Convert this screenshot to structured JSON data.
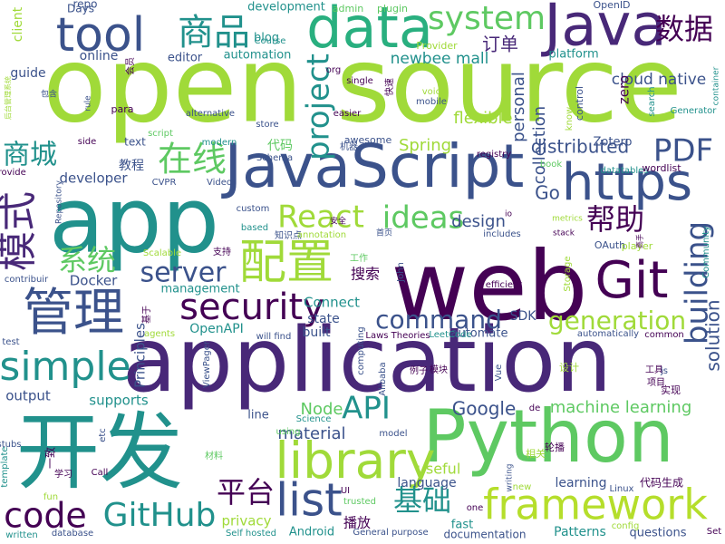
{
  "background": "#ffffff",
  "palette": [
    "#440154",
    "#3b528b",
    "#21918c",
    "#5ec962",
    "#a0da39",
    "#fde725"
  ],
  "words": [
    {
      "text": "open source",
      "color": "#a0da39"
    },
    {
      "text": "web",
      "color": "#440154"
    },
    {
      "text": "application",
      "color": "#482878"
    },
    {
      "text": "Python",
      "color": "#5ec962"
    },
    {
      "text": "开发",
      "color": "#21918c"
    },
    {
      "text": "app",
      "color": "#21918c"
    },
    {
      "text": "JavaScript",
      "color": "#3b528b"
    },
    {
      "text": "data",
      "color": "#29af7f"
    },
    {
      "text": "Java",
      "color": "#482878"
    },
    {
      "text": "tool",
      "color": "#3b528b"
    },
    {
      "text": "library",
      "color": "#a0da39"
    },
    {
      "text": "https",
      "color": "#3b528b"
    },
    {
      "text": "framework",
      "color": "#b5de2b"
    },
    {
      "text": "Git",
      "color": "#440154"
    },
    {
      "text": "配置",
      "color": "#a0da39"
    },
    {
      "text": "system",
      "color": "#5ec962"
    },
    {
      "text": "管理",
      "color": "#3b528b"
    },
    {
      "text": "商品",
      "color": "#21918c"
    },
    {
      "text": "数据",
      "color": "#440154"
    },
    {
      "text": "simple",
      "color": "#21918c"
    },
    {
      "text": "GitHub",
      "color": "#21918c"
    },
    {
      "text": "list",
      "color": "#3b528b"
    },
    {
      "text": "code",
      "color": "#440154"
    },
    {
      "text": "security",
      "color": "#440154"
    },
    {
      "text": "React",
      "color": "#a0da39"
    },
    {
      "text": "ideas",
      "color": "#5ec962"
    },
    {
      "text": "project",
      "color": "#21918c"
    },
    {
      "text": "building",
      "color": "#3b528b"
    },
    {
      "text": "API",
      "color": "#21918c"
    },
    {
      "text": "PDF",
      "color": "#3b528b"
    },
    {
      "text": "在线",
      "color": "#5ec962"
    },
    {
      "text": "server",
      "color": "#3b528b"
    },
    {
      "text": "模式",
      "color": "#482878"
    },
    {
      "text": "商城",
      "color": "#21918c"
    },
    {
      "text": "系统",
      "color": "#5ec962"
    },
    {
      "text": "帮助",
      "color": "#440154"
    },
    {
      "text": "command",
      "color": "#3b528b"
    },
    {
      "text": "generation",
      "color": "#a0da39"
    },
    {
      "text": "平台",
      "color": "#440154"
    },
    {
      "text": "基础",
      "color": "#21918c"
    },
    {
      "text": "Google",
      "color": "#3b528b"
    },
    {
      "text": "solution",
      "color": "#3b528b"
    },
    {
      "text": "material",
      "color": "#3b528b"
    },
    {
      "text": "Node",
      "color": "#5ec962"
    },
    {
      "text": "Go",
      "color": "#3b528b"
    },
    {
      "text": "design",
      "color": "#3b528b"
    },
    {
      "text": "machine learning",
      "color": "#5ec962"
    },
    {
      "text": "distributed",
      "color": "#3b528b"
    },
    {
      "text": "flexible",
      "color": "#a0da39"
    },
    {
      "text": "Spring",
      "color": "#a0da39"
    },
    {
      "text": "collection",
      "color": "#3b528b"
    },
    {
      "text": "personal",
      "color": "#3b528b"
    },
    {
      "text": "cloud native",
      "color": "#3b528b"
    },
    {
      "text": "newbee mall",
      "color": "#21918c"
    },
    {
      "text": "订单",
      "color": "#482878"
    },
    {
      "text": "automation",
      "color": "#21918c"
    },
    {
      "text": "platform",
      "color": "#21918c"
    },
    {
      "text": "online",
      "color": "#3b528b"
    },
    {
      "text": "guide",
      "color": "#3b528b"
    },
    {
      "text": "editor",
      "color": "#3b528b"
    },
    {
      "text": "developer",
      "color": "#3b528b"
    },
    {
      "text": "教程",
      "color": "#3b528b"
    },
    {
      "text": "代码",
      "color": "#5ec962"
    },
    {
      "text": "Docker",
      "color": "#3b528b"
    },
    {
      "text": "management",
      "color": "#21918c"
    },
    {
      "text": "Connect",
      "color": "#21918c"
    },
    {
      "text": "state",
      "color": "#3b528b"
    },
    {
      "text": "built",
      "color": "#3b528b"
    },
    {
      "text": "SDK",
      "color": "#3b528b"
    },
    {
      "text": "OpenAPI",
      "color": "#21918c"
    },
    {
      "text": "Principles",
      "color": "#3b528b"
    },
    {
      "text": "output",
      "color": "#3b528b"
    },
    {
      "text": "supports",
      "color": "#21918c"
    },
    {
      "text": "line",
      "color": "#3b528b"
    },
    {
      "text": "搜索",
      "color": "#440154"
    },
    {
      "text": "automate",
      "color": "#3b528b"
    },
    {
      "text": "useful",
      "color": "#a0da39"
    },
    {
      "text": "language",
      "color": "#3b528b"
    },
    {
      "text": "learning",
      "color": "#3b528b"
    },
    {
      "text": "Patterns",
      "color": "#21918c"
    },
    {
      "text": "questions",
      "color": "#3b528b"
    },
    {
      "text": "privacy",
      "color": "#a0da39"
    },
    {
      "text": "播放",
      "color": "#440154"
    },
    {
      "text": "fast",
      "color": "#21918c"
    },
    {
      "text": "Android",
      "color": "#21918c"
    },
    {
      "text": "documentation",
      "color": "#3b528b"
    },
    {
      "text": "代码生成",
      "color": "#440154"
    },
    {
      "text": "Zotero",
      "color": "#3b528b"
    },
    {
      "text": "repo",
      "color": "#3b528b"
    },
    {
      "text": "blog",
      "color": "#21918c"
    },
    {
      "text": "development",
      "color": "#21918c"
    },
    {
      "text": "Days",
      "color": "#3b528b"
    },
    {
      "text": "admin",
      "color": "#5ec962"
    },
    {
      "text": "plugin",
      "color": "#5ec962"
    },
    {
      "text": "OpenID",
      "color": "#3b528b"
    },
    {
      "text": "Course",
      "color": "#21918c"
    },
    {
      "text": "Provider",
      "color": "#a0da39"
    },
    {
      "text": "client",
      "color": "#a0da39"
    },
    {
      "text": "org",
      "color": "#440154"
    },
    {
      "text": "single",
      "color": "#440154"
    },
    {
      "text": "mobile",
      "color": "#3b528b"
    },
    {
      "text": "voice",
      "color": "#a0da39"
    },
    {
      "text": "easier",
      "color": "#440154"
    },
    {
      "text": "search",
      "color": "#21918c"
    },
    {
      "text": "Generator",
      "color": "#21918c"
    },
    {
      "text": "container",
      "color": "#21918c"
    },
    {
      "text": "zero",
      "color": "#440154"
    },
    {
      "text": "control",
      "color": "#3b528b"
    },
    {
      "text": "know",
      "color": "#a0da39"
    },
    {
      "text": "rule",
      "color": "#3b528b"
    },
    {
      "text": "para",
      "color": "#440154"
    },
    {
      "text": "alternative",
      "color": "#3b528b"
    },
    {
      "text": "store",
      "color": "#3b528b"
    },
    {
      "text": "script",
      "color": "#5ec962"
    },
    {
      "text": "modern",
      "color": "#21918c"
    },
    {
      "text": "text",
      "color": "#3b528b"
    },
    {
      "text": "side",
      "color": "#440154"
    },
    {
      "text": "Schema",
      "color": "#3b528b"
    },
    {
      "text": "awesome",
      "color": "#3b528b"
    },
    {
      "text": "机器",
      "color": "#3b528b"
    },
    {
      "text": "registry",
      "color": "#440154"
    },
    {
      "text": "book",
      "color": "#5ec962"
    },
    {
      "text": "datatables",
      "color": "#21918c"
    },
    {
      "text": "wordlist",
      "color": "#440154"
    },
    {
      "text": "provide",
      "color": "#440154"
    },
    {
      "text": "Repository",
      "color": "#3b528b"
    },
    {
      "text": "CVPR",
      "color": "#3b528b"
    },
    {
      "text": "Video",
      "color": "#3b528b"
    },
    {
      "text": "custom",
      "color": "#3b528b"
    },
    {
      "text": "based",
      "color": "#21918c"
    },
    {
      "text": "知识点",
      "color": "#3b528b"
    },
    {
      "text": "annotation",
      "color": "#a0da39"
    },
    {
      "text": "首页",
      "color": "#3b528b"
    },
    {
      "text": "安全",
      "color": "#440154"
    },
    {
      "text": "io",
      "color": "#440154"
    },
    {
      "text": "includes",
      "color": "#3b528b"
    },
    {
      "text": "stack",
      "color": "#440154"
    },
    {
      "text": "metrics",
      "color": "#a0da39"
    },
    {
      "text": "OAuth",
      "color": "#3b528b"
    },
    {
      "text": "player",
      "color": "#a0da39"
    },
    {
      "text": "Community",
      "color": "#21918c"
    },
    {
      "text": "Storage",
      "color": "#a0da39"
    },
    {
      "text": "efficient",
      "color": "#440154"
    },
    {
      "text": "工作",
      "color": "#5ec962"
    },
    {
      "text": "John",
      "color": "#3b528b"
    },
    {
      "text": "支持",
      "color": "#440154"
    },
    {
      "text": "Scalable",
      "color": "#a0da39"
    },
    {
      "text": "contribuir",
      "color": "#3b528b"
    },
    {
      "text": "基于",
      "color": "#440154"
    },
    {
      "text": "agents",
      "color": "#a0da39"
    },
    {
      "text": "will find",
      "color": "#3b528b"
    },
    {
      "text": "Laws Theories",
      "color": "#440154"
    },
    {
      "text": "LeetCode",
      "color": "#21918c"
    },
    {
      "text": "automatically",
      "color": "#3b528b"
    },
    {
      "text": "common",
      "color": "#440154"
    },
    {
      "text": "computing",
      "color": "#3b528b"
    },
    {
      "text": "test",
      "color": "#3b528b"
    },
    {
      "text": "ViewPager",
      "color": "#3b528b"
    },
    {
      "text": "Alibaba",
      "color": "#3b528b"
    },
    {
      "text": "例子",
      "color": "#440154"
    },
    {
      "text": "模块",
      "color": "#440154"
    },
    {
      "text": "Vue",
      "color": "#3b528b"
    },
    {
      "text": "设计",
      "color": "#a0da39"
    },
    {
      "text": "工具",
      "color": "#440154"
    },
    {
      "text": "项目",
      "color": "#440154"
    },
    {
      "text": "实现",
      "color": "#440154"
    },
    {
      "text": "js",
      "color": "#3b528b"
    },
    {
      "text": "Science",
      "color": "#21918c"
    },
    {
      "text": "using",
      "color": "#5ec962"
    },
    {
      "text": "de",
      "color": "#440154"
    },
    {
      "text": "model",
      "color": "#3b528b"
    },
    {
      "text": "stubs",
      "color": "#3b528b"
    },
    {
      "text": "template",
      "color": "#21918c"
    },
    {
      "text": "etc",
      "color": "#3b528b"
    },
    {
      "text": "一致",
      "color": "#440154"
    },
    {
      "text": "学习",
      "color": "#440154"
    },
    {
      "text": "材料",
      "color": "#5ec962"
    },
    {
      "text": "Call",
      "color": "#440154"
    },
    {
      "text": "fun",
      "color": "#a0da39"
    },
    {
      "text": "UI",
      "color": "#440154"
    },
    {
      "text": "trusted",
      "color": "#5ec962"
    },
    {
      "text": "writing",
      "color": "#3b528b"
    },
    {
      "text": "相关",
      "color": "#a0da39"
    },
    {
      "text": "轮播",
      "color": "#440154"
    },
    {
      "text": "one",
      "color": "#440154"
    },
    {
      "text": "new",
      "color": "#a0da39"
    },
    {
      "text": "Linux",
      "color": "#3b528b"
    },
    {
      "text": "written",
      "color": "#21918c"
    },
    {
      "text": "database",
      "color": "#3b528b"
    },
    {
      "text": "Self hosted",
      "color": "#21918c"
    },
    {
      "text": "General purpose",
      "color": "#3b528b"
    },
    {
      "text": "config",
      "color": "#a0da39"
    },
    {
      "text": "Set",
      "color": "#440154"
    },
    {
      "text": "会员",
      "color": "#440154"
    },
    {
      "text": "快速",
      "color": "#440154"
    },
    {
      "text": "包含",
      "color": "#3b528b"
    },
    {
      "text": "后台管理系统",
      "color": "#a0da39"
    },
    {
      "text": "高手",
      "color": "#440154"
    }
  ]
}
